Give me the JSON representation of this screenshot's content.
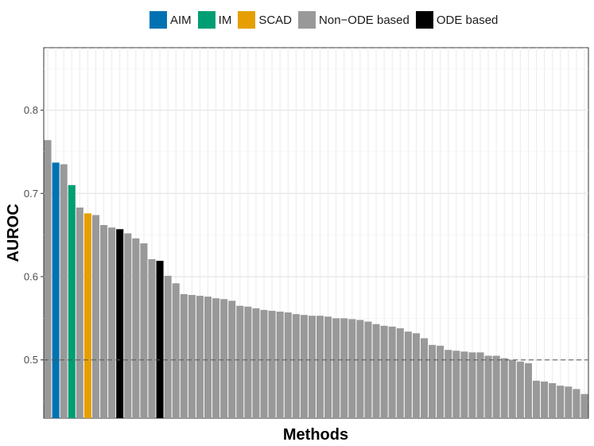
{
  "chart_data": {
    "type": "bar",
    "title": "",
    "xlabel": "Methods",
    "ylabel": "AUROC",
    "ylim": [
      0.43,
      0.875
    ],
    "yticks": [
      "0.5",
      "0.6",
      "0.7",
      "0.8"
    ],
    "reference_line": 0.5,
    "grid": true,
    "legend_position": "top",
    "legend": [
      {
        "name": "AIM",
        "color": "#0072B2"
      },
      {
        "name": "IM",
        "color": "#009E73"
      },
      {
        "name": "SCAD",
        "color": "#E69F00"
      },
      {
        "name": "Non−ODE based",
        "color": "#999999"
      },
      {
        "name": "ODE based",
        "color": "#000000"
      }
    ],
    "values": [
      0.764,
      0.737,
      0.735,
      0.71,
      0.683,
      0.676,
      0.674,
      0.662,
      0.659,
      0.657,
      0.652,
      0.646,
      0.64,
      0.621,
      0.619,
      0.601,
      0.592,
      0.579,
      0.578,
      0.577,
      0.576,
      0.574,
      0.573,
      0.571,
      0.565,
      0.564,
      0.562,
      0.56,
      0.559,
      0.558,
      0.557,
      0.555,
      0.554,
      0.553,
      0.553,
      0.552,
      0.55,
      0.55,
      0.549,
      0.548,
      0.546,
      0.543,
      0.541,
      0.54,
      0.538,
      0.534,
      0.532,
      0.526,
      0.518,
      0.517,
      0.512,
      0.511,
      0.51,
      0.509,
      0.509,
      0.505,
      0.505,
      0.502,
      0.5,
      0.498,
      0.496,
      0.475,
      0.474,
      0.472,
      0.469,
      0.468,
      0.465,
      0.459
    ],
    "groups": [
      "Non−ODE based",
      "AIM",
      "Non−ODE based",
      "IM",
      "Non−ODE based",
      "SCAD",
      "Non−ODE based",
      "Non−ODE based",
      "Non−ODE based",
      "ODE based",
      "Non−ODE based",
      "Non−ODE based",
      "Non−ODE based",
      "Non−ODE based",
      "ODE based",
      "Non−ODE based",
      "Non−ODE based",
      "Non−ODE based",
      "Non−ODE based",
      "Non−ODE based",
      "Non−ODE based",
      "Non−ODE based",
      "Non−ODE based",
      "Non−ODE based",
      "Non−ODE based",
      "Non−ODE based",
      "Non−ODE based",
      "Non−ODE based",
      "Non−ODE based",
      "Non−ODE based",
      "Non−ODE based",
      "Non−ODE based",
      "Non−ODE based",
      "Non−ODE based",
      "Non−ODE based",
      "Non−ODE based",
      "Non−ODE based",
      "Non−ODE based",
      "Non−ODE based",
      "Non−ODE based",
      "Non−ODE based",
      "Non−ODE based",
      "Non−ODE based",
      "Non−ODE based",
      "Non−ODE based",
      "Non−ODE based",
      "Non−ODE based",
      "Non−ODE based",
      "Non−ODE based",
      "Non−ODE based",
      "Non−ODE based",
      "Non−ODE based",
      "Non−ODE based",
      "Non−ODE based",
      "Non−ODE based",
      "Non−ODE based",
      "Non−ODE based",
      "Non−ODE based",
      "Non−ODE based",
      "Non−ODE based",
      "Non−ODE based",
      "Non−ODE based",
      "Non−ODE based",
      "Non−ODE based",
      "Non−ODE based",
      "Non−ODE based",
      "Non−ODE based",
      "Non−ODE based"
    ]
  }
}
